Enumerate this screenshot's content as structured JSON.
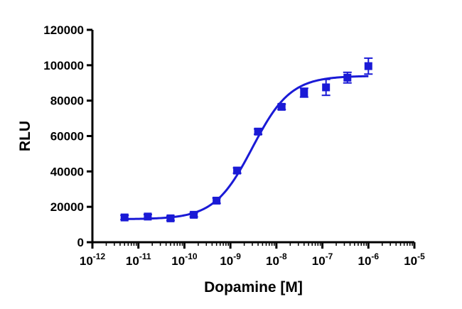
{
  "chart_data": {
    "type": "scatter",
    "title": "",
    "xlabel": "Dopamine [M]",
    "ylabel": "RLU",
    "x_scale": "log10",
    "xlim": [
      1e-12,
      1e-05
    ],
    "ylim": [
      0,
      120000
    ],
    "x_ticks": [
      {
        "base": "10",
        "exp": "-12"
      },
      {
        "base": "10",
        "exp": "-11"
      },
      {
        "base": "10",
        "exp": "-10"
      },
      {
        "base": "10",
        "exp": "-9"
      },
      {
        "base": "10",
        "exp": "-8"
      },
      {
        "base": "10",
        "exp": "-7"
      },
      {
        "base": "10",
        "exp": "-6"
      },
      {
        "base": "10",
        "exp": "-5"
      }
    ],
    "y_ticks": [
      "0",
      "20000",
      "40000",
      "60000",
      "80000",
      "100000",
      "120000"
    ],
    "grid": false,
    "color": "#1a1ad6",
    "marker": "square",
    "series": [
      {
        "x": [
          5e-12,
          1.6e-11,
          5e-11,
          1.6e-10,
          5e-10,
          1.4e-09,
          4e-09,
          1.3e-08,
          4e-08,
          1.2e-07,
          3.5e-07,
          1e-06
        ],
        "y": [
          14000,
          14500,
          13500,
          15500,
          23500,
          40500,
          62500,
          76500,
          84500,
          87500,
          93000,
          99500
        ],
        "err": [
          1200,
          1200,
          1200,
          1200,
          1500,
          1500,
          1500,
          1500,
          2500,
          4500,
          3000,
          4500
        ]
      }
    ],
    "fit": {
      "model": "four-parameter logistic",
      "bottom": 13000,
      "top": 94000,
      "log_ec50": -8.52,
      "hill_slope": 1.05,
      "x_range": [
        5e-12,
        1e-06
      ]
    }
  }
}
